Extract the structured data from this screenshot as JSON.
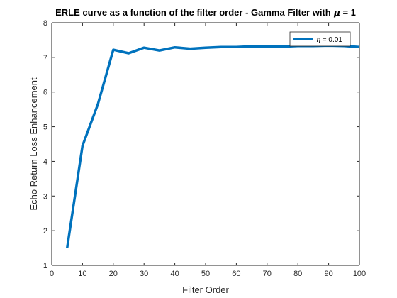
{
  "chart_data": {
    "type": "line",
    "title_main": "ERLE curve as a function of the filter order - Gamma Filter with ",
    "title_symbol": "μ",
    "title_end": " = 1",
    "xlabel": "Filter Order",
    "ylabel": "Echo Return Loss Enhancement",
    "xlim": [
      0,
      100
    ],
    "ylim": [
      1,
      8
    ],
    "xticks": [
      0,
      10,
      20,
      30,
      40,
      50,
      60,
      70,
      80,
      90,
      100
    ],
    "yticks": [
      1,
      2,
      3,
      4,
      5,
      6,
      7,
      8
    ],
    "grid": false,
    "legend_position": "top-right",
    "series": [
      {
        "name_symbol": "η",
        "name_rest": " = 0.01",
        "color": "#0072BD",
        "x": [
          5,
          10,
          15,
          20,
          25,
          30,
          35,
          40,
          45,
          50,
          55,
          60,
          65,
          70,
          75,
          80,
          85,
          90,
          95,
          100
        ],
        "y": [
          1.5,
          4.45,
          5.65,
          7.22,
          7.12,
          7.28,
          7.2,
          7.29,
          7.25,
          7.28,
          7.3,
          7.3,
          7.32,
          7.31,
          7.31,
          7.33,
          7.33,
          7.34,
          7.33,
          7.3
        ]
      }
    ]
  }
}
